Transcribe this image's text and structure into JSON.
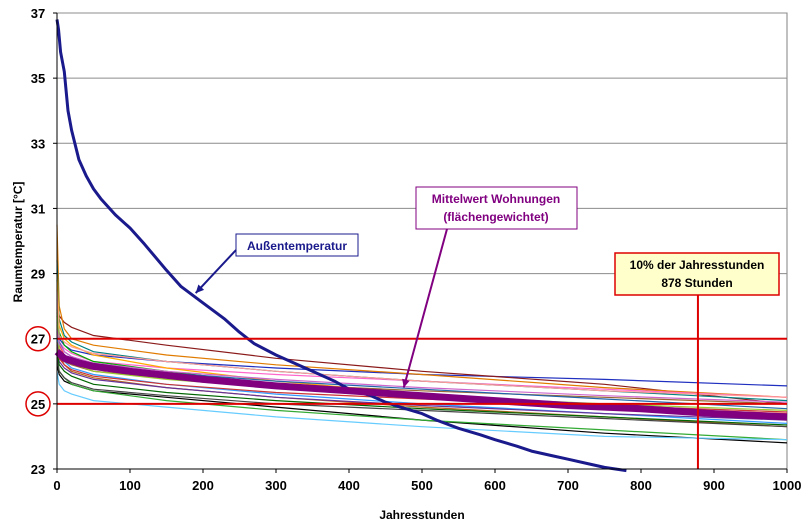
{
  "chart_data": {
    "type": "line",
    "title": "",
    "xlabel": "Jahresstunden",
    "ylabel": "Raumtemperatur [°C]",
    "xlim": [
      0,
      1000
    ],
    "ylim": [
      23,
      37
    ],
    "x_ticks": [
      "0",
      "100",
      "200",
      "300",
      "400",
      "500",
      "600",
      "700",
      "800",
      "900",
      "1000"
    ],
    "y_ticks": [
      "23",
      "25",
      "27",
      "29",
      "31",
      "33",
      "35",
      "37"
    ],
    "y_ticks_circled": [
      "25",
      "27"
    ],
    "grid": "horizontal",
    "reference_lines": [
      {
        "axis": "y",
        "value": 27,
        "color": "#dd0000"
      },
      {
        "axis": "y",
        "value": 25,
        "color": "#dd0000"
      },
      {
        "axis": "x",
        "value": 878,
        "color": "#dd0000"
      }
    ],
    "annotations": [
      {
        "text": "Außentemperatur",
        "color": "#1a1a8c",
        "border": "#1a1a8c",
        "bg": "#ffffff",
        "point_to": [
          190,
          28.4
        ]
      },
      {
        "lines": [
          "Mittelwert Wohnungen",
          "(flächengewichtet)"
        ],
        "color": "#800080",
        "border": "#800080",
        "bg": "#ffffff",
        "point_to": [
          475,
          25.5
        ]
      },
      {
        "lines": [
          "10% der Jahresstunden",
          "878 Stunden"
        ],
        "color": "#000000",
        "border": "#dd0000",
        "bg": "#ffffcc"
      }
    ],
    "series": [
      {
        "name": "Außentemperatur",
        "color": "#1a1a8c",
        "width": 3,
        "x": [
          0,
          2,
          5,
          10,
          15,
          20,
          30,
          40,
          50,
          60,
          80,
          100,
          120,
          150,
          170,
          200,
          230,
          250,
          270,
          300,
          330,
          350,
          380,
          400,
          430,
          450,
          470,
          500,
          520,
          550,
          580,
          600,
          630,
          650,
          680,
          700,
          730,
          750,
          780
        ],
        "y": [
          36.8,
          36.5,
          35.8,
          35.2,
          34.0,
          33.4,
          32.5,
          32.0,
          31.6,
          31.3,
          30.8,
          30.4,
          29.9,
          29.1,
          28.6,
          28.1,
          27.6,
          27.2,
          26.85,
          26.5,
          26.2,
          26.0,
          25.7,
          25.45,
          25.25,
          25.05,
          24.9,
          24.7,
          24.5,
          24.25,
          24.05,
          23.9,
          23.7,
          23.55,
          23.4,
          23.3,
          23.15,
          23.05,
          22.95
        ]
      },
      {
        "name": "Mittelwert Wohnungen",
        "color": "#800080",
        "width": 7,
        "x": [
          0,
          10,
          30,
          50,
          100,
          200,
          300,
          400,
          500,
          600,
          700,
          800,
          900,
          1000
        ],
        "y": [
          26.6,
          26.4,
          26.25,
          26.15,
          26.0,
          25.75,
          25.55,
          25.4,
          25.25,
          25.1,
          24.95,
          24.85,
          24.7,
          24.6
        ]
      }
    ],
    "apartment_lines": [
      {
        "color": "#1f2fbf",
        "y": [
          27.4,
          27.0,
          26.8,
          26.65,
          26.5,
          26.3,
          26.1,
          25.9,
          25.75,
          25.55
        ]
      },
      {
        "color": "#8b1a1a",
        "y": [
          28.2,
          27.7,
          27.5,
          27.35,
          27.1,
          26.8,
          26.4,
          26.0,
          25.6,
          25.0
        ]
      },
      {
        "color": "#e07b00",
        "y": [
          30.5,
          28.0,
          27.3,
          27.0,
          26.8,
          26.5,
          26.2,
          25.9,
          25.5,
          25.2
        ]
      },
      {
        "color": "#ff66cc",
        "y": [
          27.5,
          26.9,
          26.7,
          26.55,
          26.3,
          26.1,
          25.9,
          25.7,
          25.45,
          25.2
        ]
      },
      {
        "color": "#008080",
        "y": [
          29.4,
          27.6,
          27.1,
          26.9,
          26.6,
          26.3,
          26.0,
          25.7,
          25.4,
          25.1
        ]
      },
      {
        "color": "#000000",
        "y": [
          26.2,
          25.9,
          25.7,
          25.6,
          25.4,
          25.2,
          24.9,
          24.5,
          24.1,
          23.8
        ]
      },
      {
        "color": "#33aa33",
        "y": [
          26.5,
          26.0,
          25.8,
          25.6,
          25.4,
          25.1,
          24.8,
          24.5,
          24.2,
          23.9
        ]
      },
      {
        "color": "#66ccff",
        "y": [
          26.0,
          25.6,
          25.4,
          25.3,
          25.1,
          24.9,
          24.6,
          24.3,
          24.0,
          23.9
        ]
      },
      {
        "color": "#b5651d",
        "y": [
          27.0,
          26.5,
          26.2,
          26.0,
          25.8,
          25.5,
          25.2,
          24.9,
          24.6,
          24.3
        ]
      },
      {
        "color": "#00aa00",
        "y": [
          28.8,
          27.2,
          26.8,
          26.6,
          26.3,
          26.0,
          25.6,
          25.2,
          24.9,
          24.6
        ]
      },
      {
        "color": "#ff4444",
        "y": [
          27.8,
          26.8,
          26.5,
          26.3,
          26.0,
          25.8,
          25.5,
          25.2,
          24.9,
          24.7
        ]
      },
      {
        "color": "#3399ff",
        "y": [
          27.2,
          26.6,
          26.3,
          26.1,
          25.9,
          25.6,
          25.3,
          25.0,
          24.7,
          24.4
        ]
      },
      {
        "color": "#996633",
        "y": [
          26.9,
          26.5,
          26.3,
          26.2,
          26.0,
          25.8,
          25.6,
          25.4,
          25.2,
          25.0
        ]
      },
      {
        "color": "#ffaa00",
        "y": [
          29.0,
          27.4,
          27.0,
          26.8,
          26.5,
          26.1,
          25.7,
          25.3,
          24.9,
          24.5
        ]
      },
      {
        "color": "#663399",
        "y": [
          26.8,
          26.3,
          26.1,
          25.95,
          25.75,
          25.5,
          25.2,
          24.95,
          24.7,
          24.5
        ]
      },
      {
        "color": "#ff9999",
        "y": [
          28.5,
          27.1,
          26.9,
          26.75,
          26.55,
          26.3,
          26.0,
          25.7,
          25.4,
          25.2
        ]
      },
      {
        "color": "#006600",
        "y": [
          26.6,
          26.2,
          26.0,
          25.85,
          25.6,
          25.35,
          25.1,
          24.85,
          24.6,
          24.35
        ]
      },
      {
        "color": "#2266aa",
        "y": [
          27.7,
          26.9,
          26.6,
          26.45,
          26.2,
          25.95,
          25.7,
          25.45,
          25.15,
          24.85
        ]
      },
      {
        "color": "#cc3333",
        "y": [
          26.7,
          26.4,
          26.2,
          26.05,
          25.85,
          25.6,
          25.35,
          25.15,
          24.95,
          24.75
        ]
      },
      {
        "color": "#99cc33",
        "y": [
          27.9,
          26.7,
          26.4,
          26.25,
          26.0,
          25.75,
          25.5,
          25.25,
          25.0,
          24.8
        ]
      },
      {
        "color": "#444444",
        "y": [
          26.4,
          26.0,
          25.8,
          25.65,
          25.45,
          25.25,
          25.0,
          24.8,
          24.55,
          24.3
        ]
      },
      {
        "color": "#cc66cc",
        "y": [
          27.3,
          26.85,
          26.6,
          26.45,
          26.25,
          26.0,
          25.75,
          25.5,
          25.25,
          25.05
        ]
      }
    ],
    "apartment_x": [
      0,
      3,
      10,
      20,
      50,
      150,
      300,
      500,
      750,
      1000
    ]
  }
}
